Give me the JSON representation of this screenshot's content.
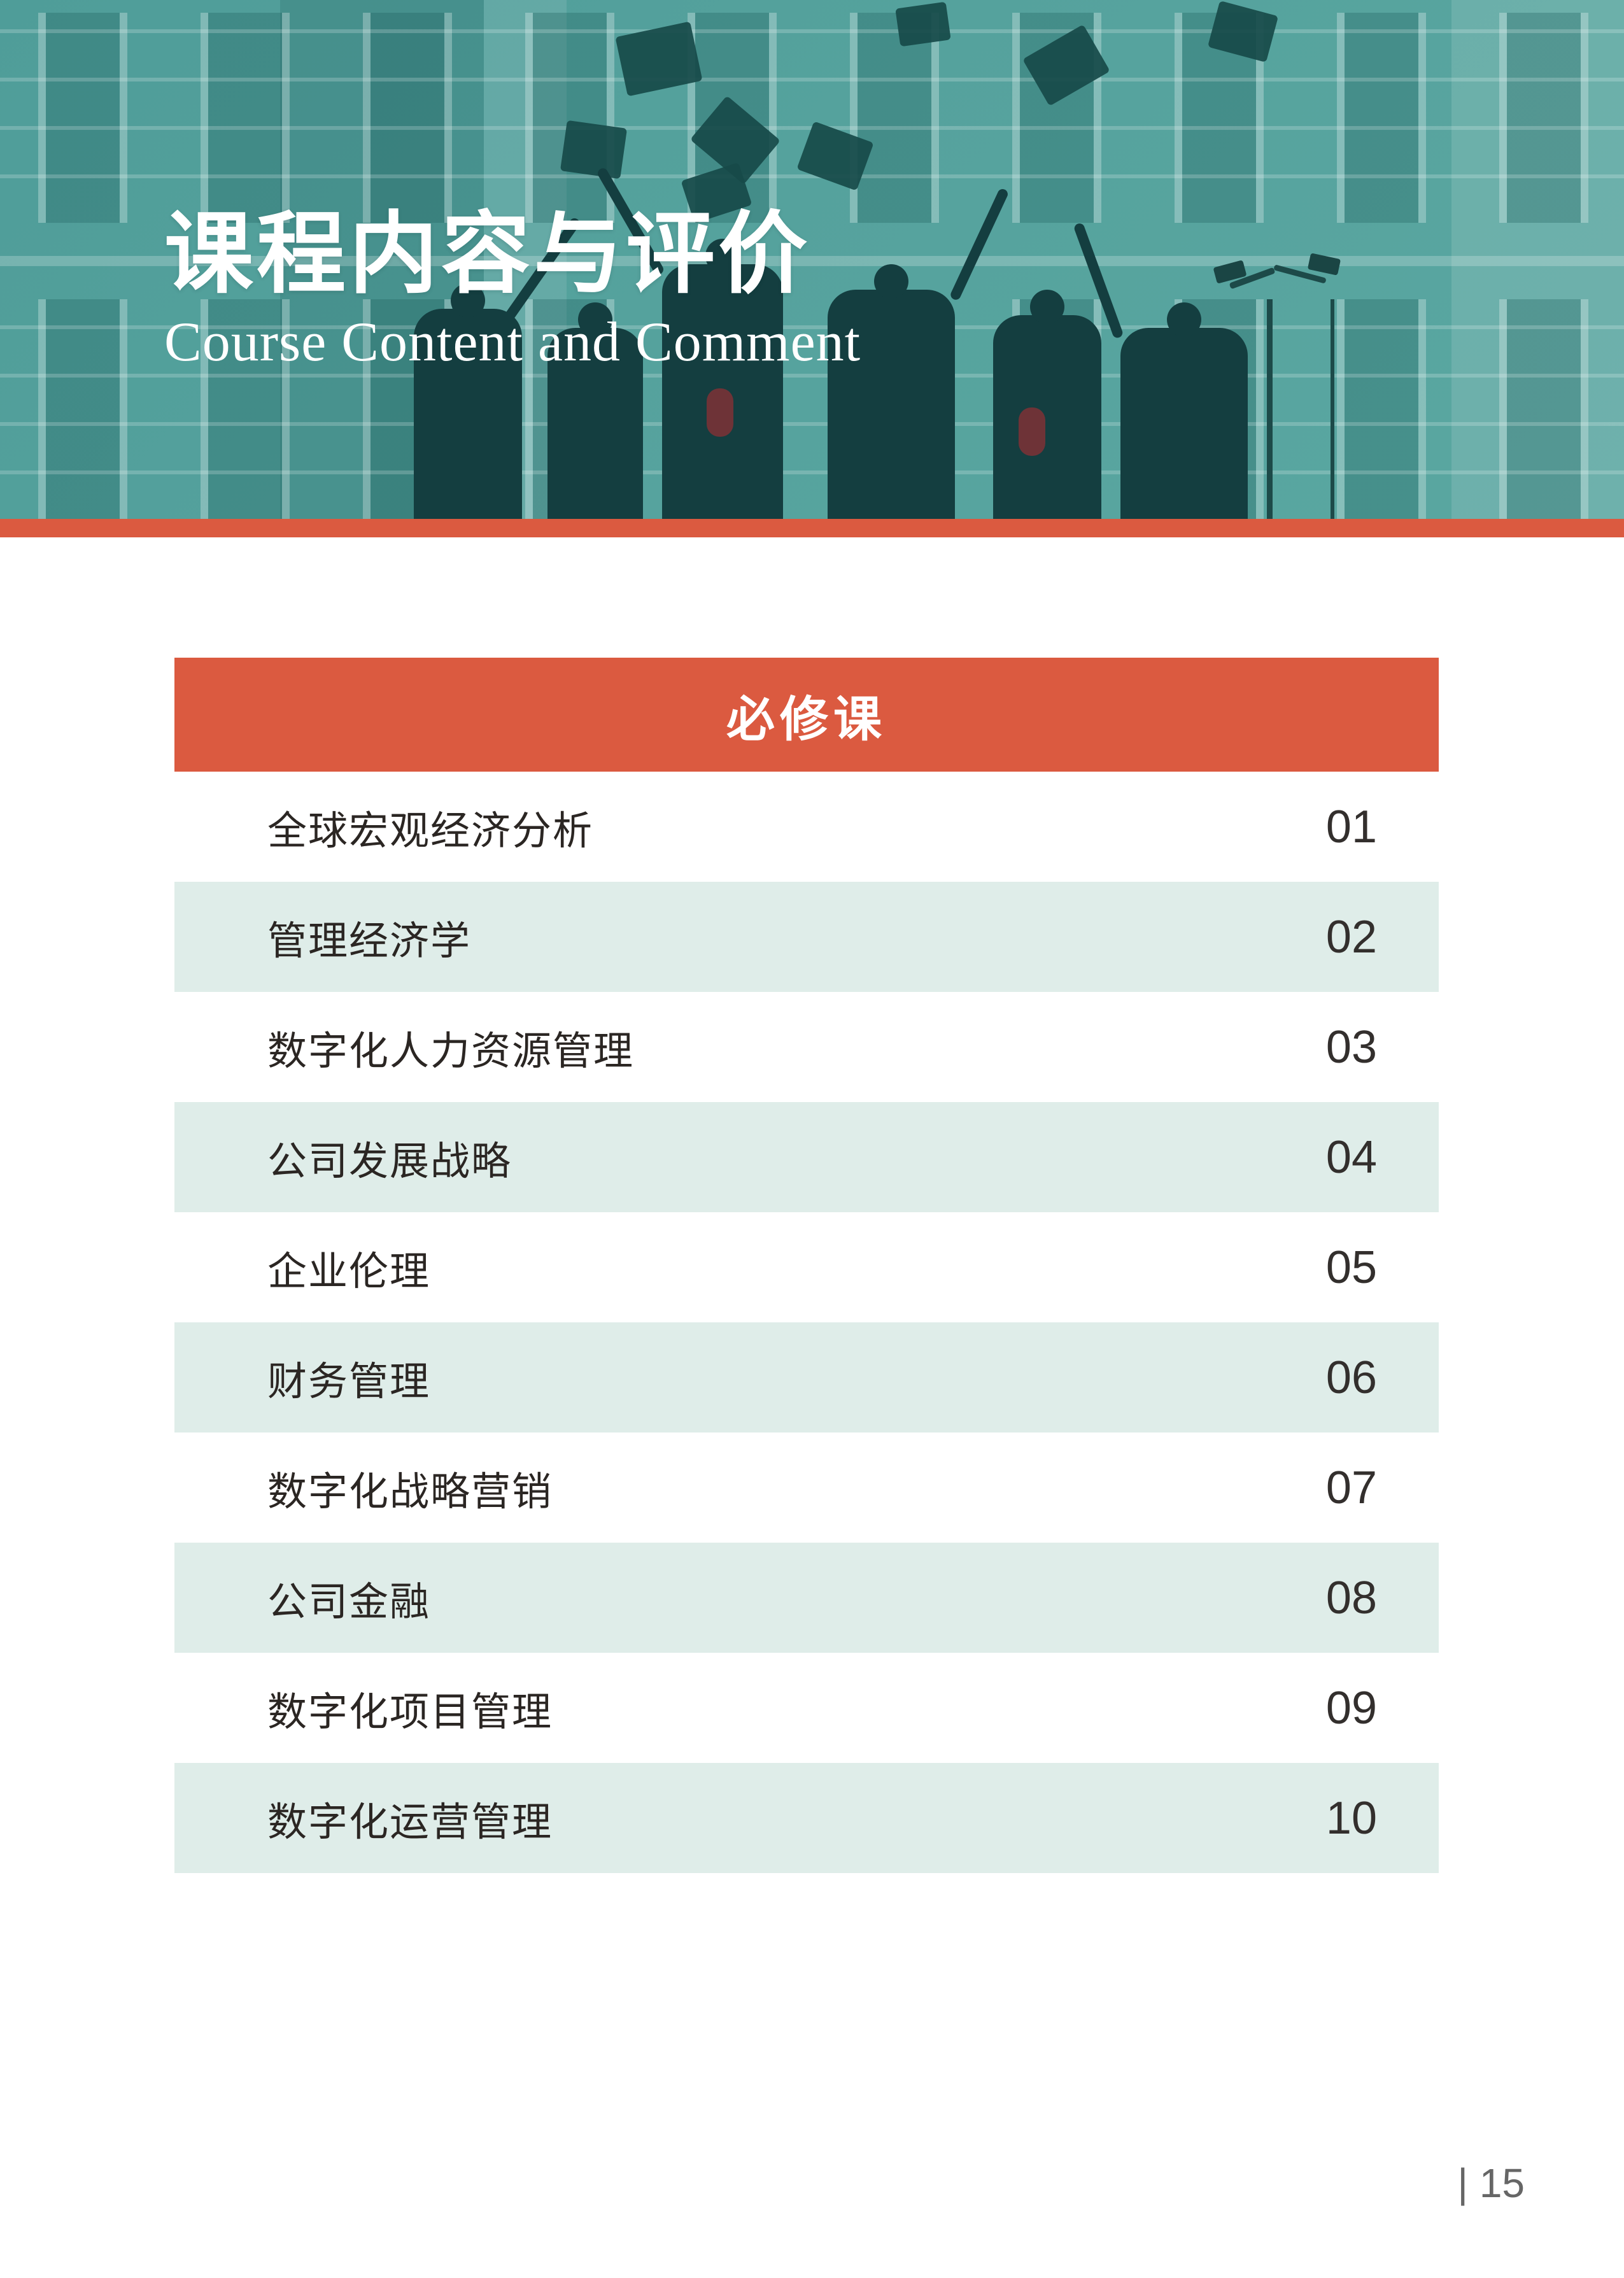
{
  "hero": {
    "title": "课程内容与评价",
    "subtitle": "Course Content and Comment"
  },
  "table": {
    "header": "必修课",
    "rows": [
      {
        "label": "全球宏观经济分析",
        "number": "01"
      },
      {
        "label": "管理经济学",
        "number": "02"
      },
      {
        "label": "数字化人力资源管理",
        "number": "03"
      },
      {
        "label": "公司发展战略",
        "number": "04"
      },
      {
        "label": "企业伦理",
        "number": "05"
      },
      {
        "label": "财务管理",
        "number": "06"
      },
      {
        "label": "数字化战略营销",
        "number": "07"
      },
      {
        "label": "公司金融",
        "number": "08"
      },
      {
        "label": "数字化项目管理",
        "number": "09"
      },
      {
        "label": "数字化运营管理",
        "number": "10"
      }
    ]
  },
  "footer": {
    "page_number": "| 15"
  },
  "colors": {
    "accent_orange": "#db5a40",
    "hero_teal": "#4f9d99",
    "hero_dark_shapes": "#143e40",
    "row_alt_mint": "#dfede9",
    "row_text": "#2b2623",
    "page_number_gray": "#666666",
    "title_white": "#ffffff"
  }
}
